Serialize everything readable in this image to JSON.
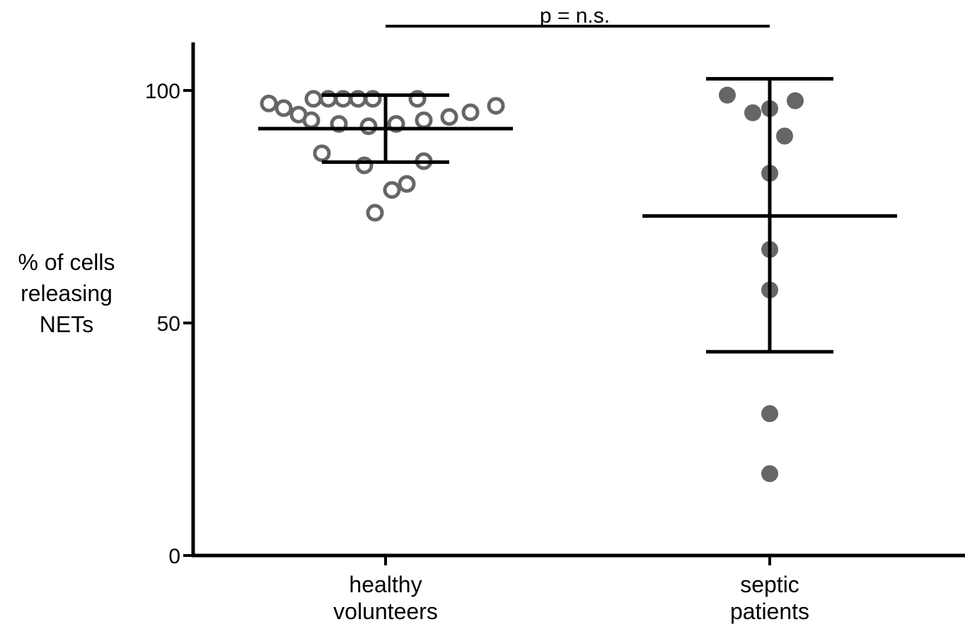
{
  "chart_data": {
    "type": "scatter",
    "ylabel": [
      "% of cells",
      "releasing",
      "NETs"
    ],
    "ylim": [
      0,
      110
    ],
    "yticks": [
      0,
      50,
      100
    ],
    "grid": false,
    "categories": [
      [
        "healthy",
        "volunteers"
      ],
      [
        "septic",
        "patients"
      ]
    ],
    "series": [
      {
        "category": 0,
        "marker": "open-circle",
        "color": "#666666",
        "points": [
          {
            "offset": -0.55,
            "y": 97.2
          },
          {
            "offset": -0.48,
            "y": 96.2
          },
          {
            "offset": -0.41,
            "y": 94.8
          },
          {
            "offset": -0.34,
            "y": 98.2
          },
          {
            "offset": -0.27,
            "y": 98.2
          },
          {
            "offset": -0.2,
            "y": 98.2
          },
          {
            "offset": -0.13,
            "y": 98.2
          },
          {
            "offset": -0.06,
            "y": 98.2
          },
          {
            "offset": -0.35,
            "y": 93.6
          },
          {
            "offset": -0.22,
            "y": 92.8
          },
          {
            "offset": -0.08,
            "y": 92.3
          },
          {
            "offset": 0.05,
            "y": 92.8
          },
          {
            "offset": 0.18,
            "y": 93.6
          },
          {
            "offset": 0.3,
            "y": 94.3
          },
          {
            "offset": 0.4,
            "y": 95.3
          },
          {
            "offset": 0.52,
            "y": 96.7
          },
          {
            "offset": 0.15,
            "y": 98.2
          },
          {
            "offset": -0.3,
            "y": 86.5
          },
          {
            "offset": -0.1,
            "y": 83.9
          },
          {
            "offset": 0.18,
            "y": 84.8
          },
          {
            "offset": 0.1,
            "y": 79.9
          },
          {
            "offset": 0.03,
            "y": 78.6
          },
          {
            "offset": -0.05,
            "y": 73.7
          }
        ],
        "mean": 91.8,
        "err_low": 84.6,
        "err_high": 99.0
      },
      {
        "category": 1,
        "marker": "filled-circle",
        "color": "#666666",
        "points": [
          {
            "offset": -0.2,
            "y": 99.0
          },
          {
            "offset": 0.12,
            "y": 97.8
          },
          {
            "offset": -0.08,
            "y": 95.2
          },
          {
            "offset": 0.0,
            "y": 96.1
          },
          {
            "offset": 0.07,
            "y": 90.2
          },
          {
            "offset": 0.0,
            "y": 82.2
          },
          {
            "offset": 0.0,
            "y": 65.8
          },
          {
            "offset": 0.0,
            "y": 57.1
          },
          {
            "offset": 0.0,
            "y": 30.5
          },
          {
            "offset": 0.0,
            "y": 17.6
          }
        ],
        "mean": 73.0,
        "err_low": 43.8,
        "err_high": 102.5
      }
    ],
    "annotation": {
      "text": "p = n.s.",
      "between": [
        0,
        1
      ]
    }
  }
}
